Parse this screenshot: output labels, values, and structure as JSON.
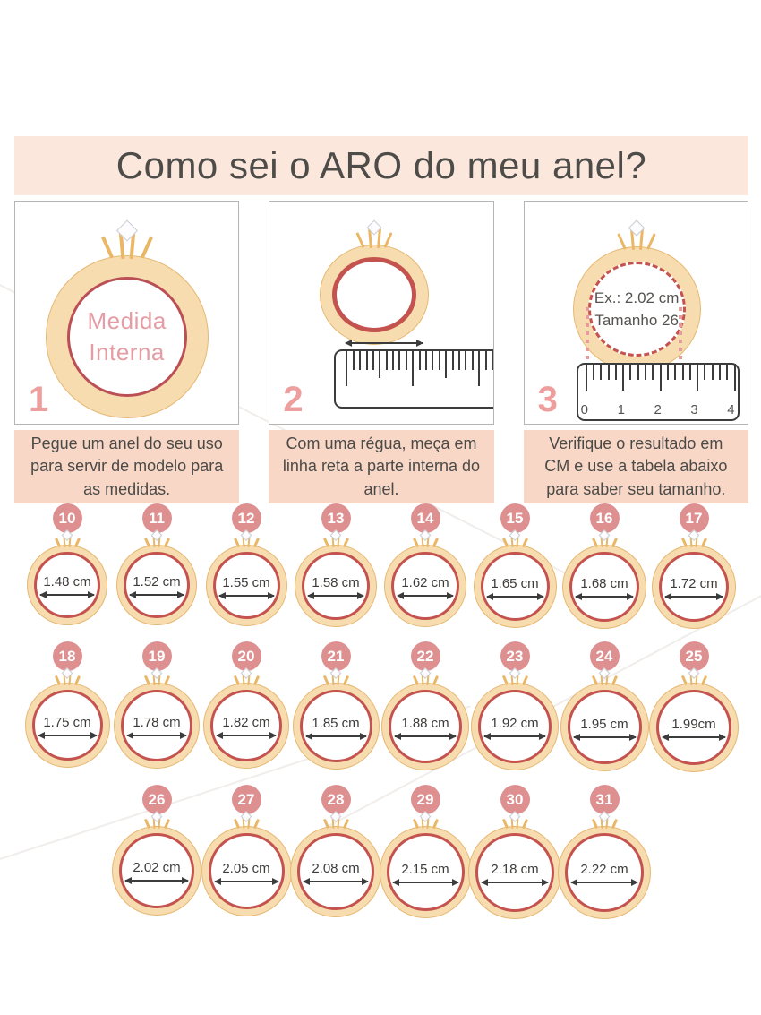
{
  "title": "Como sei o ARO do meu anel?",
  "colors": {
    "title_bg": "#fce7dd",
    "caption_bg": "#f9d7c7",
    "badge_pink": "#de9090",
    "step_number_pink": "#ef9e9e",
    "ring_gold": "#f6dcae",
    "ring_gold_border": "#e6b873",
    "ring_red": "#c4534f",
    "text_dark": "#4a4a47"
  },
  "steps": [
    {
      "number": "1",
      "ring_label_line1": "Medida",
      "ring_label_line2": "Interna",
      "caption": "Pegue um anel do seu uso para servir de modelo para as medidas."
    },
    {
      "number": "2",
      "caption": "Com uma régua, meça em linha reta a parte interna do anel."
    },
    {
      "number": "3",
      "ring_label_line1": "Ex.: 2.02 cm",
      "ring_label_line2": "Tamanho 26",
      "ruler_numbers": [
        "0",
        "1",
        "2",
        "3",
        "4"
      ],
      "caption": "Verifique o resultado em CM e use a tabela abaixo para saber seu tamanho."
    }
  ],
  "size_rows": [
    [
      {
        "size": "10",
        "measure": "1.48 cm"
      },
      {
        "size": "11",
        "measure": "1.52 cm"
      },
      {
        "size": "12",
        "measure": "1.55 cm"
      },
      {
        "size": "13",
        "measure": "1.58 cm"
      },
      {
        "size": "14",
        "measure": "1.62 cm"
      },
      {
        "size": "15",
        "measure": "1.65 cm"
      },
      {
        "size": "16",
        "measure": "1.68 cm"
      },
      {
        "size": "17",
        "measure": "1.72 cm"
      }
    ],
    [
      {
        "size": "18",
        "measure": "1.75 cm"
      },
      {
        "size": "19",
        "measure": "1.78 cm"
      },
      {
        "size": "20",
        "measure": "1.82 cm"
      },
      {
        "size": "21",
        "measure": "1.85 cm"
      },
      {
        "size": "22",
        "measure": "1.88 cm"
      },
      {
        "size": "23",
        "measure": "1.92 cm"
      },
      {
        "size": "24",
        "measure": "1.95 cm"
      },
      {
        "size": "25",
        "measure": "1.99cm"
      }
    ],
    [
      {
        "size": "26",
        "measure": "2.02 cm"
      },
      {
        "size": "27",
        "measure": "2.05 cm"
      },
      {
        "size": "28",
        "measure": "2.08 cm"
      },
      {
        "size": "29",
        "measure": "2.15 cm"
      },
      {
        "size": "30",
        "measure": "2.18 cm"
      },
      {
        "size": "31",
        "measure": "2.22 cm"
      }
    ]
  ]
}
